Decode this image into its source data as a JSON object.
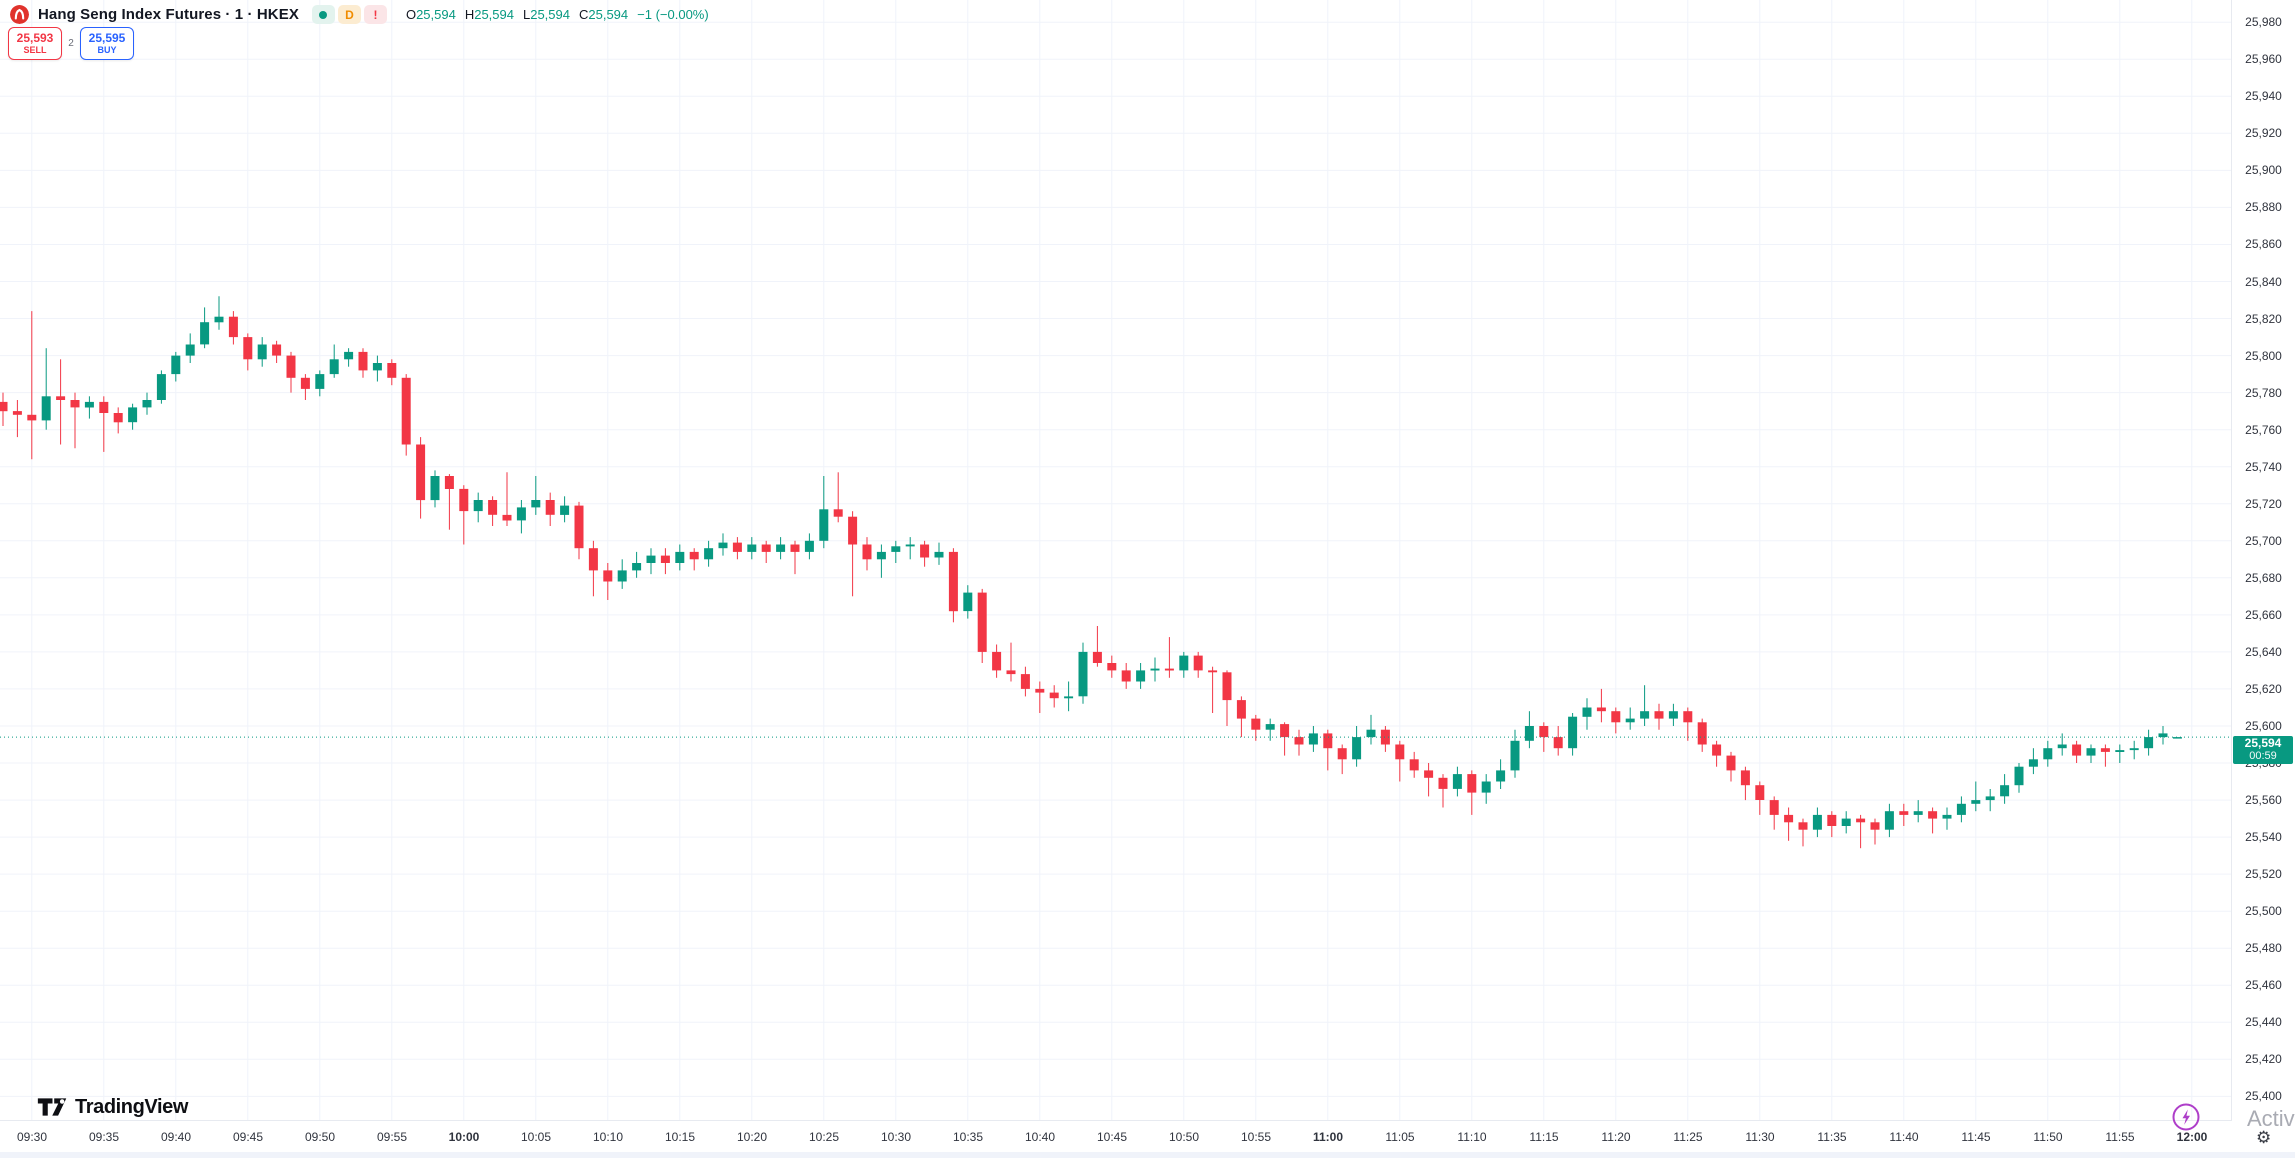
{
  "header": {
    "symbol_title": "Hang Seng Index Futures · 1 · HKEX",
    "badges": {
      "market_status_dot": "●",
      "delayed_label": "D",
      "alert_label": "!"
    },
    "ohlc": {
      "o_label": "O",
      "o": "25,594",
      "h_label": "H",
      "h": "25,594",
      "l_label": "L",
      "l": "25,594",
      "c_label": "C",
      "c": "25,594",
      "change": "−1 (−0.00%)"
    },
    "sell_button": {
      "price": "25,593",
      "label": "SELL"
    },
    "spread": "2",
    "buy_button": {
      "price": "25,595",
      "label": "BUY"
    }
  },
  "watermarks": {
    "brand": "TradingView",
    "overlay_text": "Activ",
    "gear_glyph": "⚙"
  },
  "price_axis": {
    "max": 25980,
    "min": 25400,
    "step": 20,
    "labels": [
      "25,980",
      "25,960",
      "25,940",
      "25,920",
      "25,900",
      "25,880",
      "25,860",
      "25,840",
      "25,820",
      "25,800",
      "25,780",
      "25,760",
      "25,740",
      "25,720",
      "25,700",
      "25,680",
      "25,660",
      "25,640",
      "25,620",
      "25,600",
      "25,580",
      "25,560",
      "25,540",
      "25,520",
      "25,500",
      "25,480",
      "25,460",
      "25,440",
      "25,420",
      "25,400"
    ],
    "current": {
      "price": "25,594",
      "countdown": "00:59"
    }
  },
  "time_axis": {
    "labels": [
      {
        "text": "09:30",
        "bold": false,
        "minute": 2
      },
      {
        "text": "09:35",
        "bold": false,
        "minute": 7
      },
      {
        "text": "09:40",
        "bold": false,
        "minute": 12
      },
      {
        "text": "09:45",
        "bold": false,
        "minute": 17
      },
      {
        "text": "09:50",
        "bold": false,
        "minute": 22
      },
      {
        "text": "09:55",
        "bold": false,
        "minute": 27
      },
      {
        "text": "10:00",
        "bold": true,
        "minute": 32
      },
      {
        "text": "10:05",
        "bold": false,
        "minute": 37
      },
      {
        "text": "10:10",
        "bold": false,
        "minute": 42
      },
      {
        "text": "10:15",
        "bold": false,
        "minute": 47
      },
      {
        "text": "10:20",
        "bold": false,
        "minute": 52
      },
      {
        "text": "10:25",
        "bold": false,
        "minute": 57
      },
      {
        "text": "10:30",
        "bold": false,
        "minute": 62
      },
      {
        "text": "10:35",
        "bold": false,
        "minute": 67
      },
      {
        "text": "10:40",
        "bold": false,
        "minute": 72
      },
      {
        "text": "10:45",
        "bold": false,
        "minute": 77
      },
      {
        "text": "10:50",
        "bold": false,
        "minute": 82
      },
      {
        "text": "10:55",
        "bold": false,
        "minute": 87
      },
      {
        "text": "11:00",
        "bold": true,
        "minute": 92
      },
      {
        "text": "11:05",
        "bold": false,
        "minute": 97
      },
      {
        "text": "11:10",
        "bold": false,
        "minute": 102
      },
      {
        "text": "11:15",
        "bold": false,
        "minute": 107
      },
      {
        "text": "11:20",
        "bold": false,
        "minute": 112
      },
      {
        "text": "11:25",
        "bold": false,
        "minute": 117
      },
      {
        "text": "11:30",
        "bold": false,
        "minute": 122
      },
      {
        "text": "11:35",
        "bold": false,
        "minute": 127
      },
      {
        "text": "11:40",
        "bold": false,
        "minute": 132
      },
      {
        "text": "11:45",
        "bold": false,
        "minute": 137
      },
      {
        "text": "11:50",
        "bold": false,
        "minute": 142
      },
      {
        "text": "11:55",
        "bold": false,
        "minute": 147
      },
      {
        "text": "12:00",
        "bold": true,
        "minute": 152
      }
    ]
  },
  "colors": {
    "up": "#089981",
    "down": "#f23645",
    "sell": "#f23645",
    "buy": "#2962ff",
    "current_line": "#089981",
    "current_label_bg": "#089981",
    "grid": "#f0f3fa",
    "tick": "#b2b5be",
    "logo_red": "#e0332c",
    "status_dot": "#089981",
    "lightning": "#ae3ec9"
  },
  "chart_data": {
    "type": "candlestick",
    "title": "Hang Seng Index Futures, 1 minute, HKEX",
    "interval_minutes": 1,
    "start_time": "09:28",
    "end_time": "11:59",
    "ylim": [
      25400,
      25980
    ],
    "grid": true,
    "current_price": 25594,
    "countdown": "00:59",
    "ohlc_readout": {
      "open": 25594,
      "high": 25594,
      "low": 25594,
      "close": 25594,
      "change": -1,
      "change_pct": "-0.00%"
    },
    "candles": [
      [
        25775,
        25780,
        25762,
        25770
      ],
      [
        25770,
        25776,
        25756,
        25768
      ],
      [
        25768,
        25824,
        25744,
        25765
      ],
      [
        25765,
        25804,
        25760,
        25778
      ],
      [
        25778,
        25798,
        25752,
        25776
      ],
      [
        25776,
        25780,
        25750,
        25772
      ],
      [
        25772,
        25778,
        25766,
        25775
      ],
      [
        25775,
        25778,
        25748,
        25769
      ],
      [
        25769,
        25772,
        25758,
        25764
      ],
      [
        25764,
        25774,
        25760,
        25772
      ],
      [
        25772,
        25780,
        25768,
        25776
      ],
      [
        25776,
        25792,
        25774,
        25790
      ],
      [
        25790,
        25802,
        25786,
        25800
      ],
      [
        25800,
        25812,
        25796,
        25806
      ],
      [
        25806,
        25826,
        25804,
        25818
      ],
      [
        25818,
        25832,
        25814,
        25821
      ],
      [
        25821,
        25824,
        25806,
        25810
      ],
      [
        25810,
        25812,
        25792,
        25798
      ],
      [
        25798,
        25810,
        25794,
        25806
      ],
      [
        25806,
        25808,
        25796,
        25800
      ],
      [
        25800,
        25802,
        25780,
        25788
      ],
      [
        25788,
        25790,
        25776,
        25782
      ],
      [
        25782,
        25792,
        25778,
        25790
      ],
      [
        25790,
        25806,
        25788,
        25798
      ],
      [
        25798,
        25804,
        25794,
        25802
      ],
      [
        25802,
        25804,
        25788,
        25792
      ],
      [
        25792,
        25800,
        25786,
        25796
      ],
      [
        25796,
        25798,
        25784,
        25788
      ],
      [
        25788,
        25790,
        25746,
        25752
      ],
      [
        25752,
        25756,
        25712,
        25722
      ],
      [
        25722,
        25738,
        25718,
        25735
      ],
      [
        25735,
        25736,
        25706,
        25728
      ],
      [
        25728,
        25730,
        25698,
        25716
      ],
      [
        25716,
        25726,
        25710,
        25722
      ],
      [
        25722,
        25724,
        25708,
        25714
      ],
      [
        25714,
        25737,
        25708,
        25711
      ],
      [
        25711,
        25722,
        25704,
        25718
      ],
      [
        25718,
        25735,
        25714,
        25722
      ],
      [
        25722,
        25726,
        25708,
        25714
      ],
      [
        25714,
        25724,
        25710,
        25719
      ],
      [
        25719,
        25721,
        25690,
        25696
      ],
      [
        25696,
        25700,
        25670,
        25684
      ],
      [
        25684,
        25688,
        25668,
        25678
      ],
      [
        25678,
        25690,
        25674,
        25684
      ],
      [
        25684,
        25694,
        25680,
        25688
      ],
      [
        25688,
        25696,
        25682,
        25692
      ],
      [
        25692,
        25696,
        25682,
        25688
      ],
      [
        25688,
        25698,
        25684,
        25694
      ],
      [
        25694,
        25696,
        25684,
        25690
      ],
      [
        25690,
        25700,
        25686,
        25696
      ],
      [
        25696,
        25704,
        25692,
        25699
      ],
      [
        25699,
        25702,
        25690,
        25694
      ],
      [
        25694,
        25702,
        25690,
        25698
      ],
      [
        25698,
        25700,
        25688,
        25694
      ],
      [
        25694,
        25702,
        25690,
        25698
      ],
      [
        25698,
        25700,
        25682,
        25694
      ],
      [
        25694,
        25704,
        25690,
        25700
      ],
      [
        25700,
        25735,
        25696,
        25717
      ],
      [
        25717,
        25737,
        25710,
        25713
      ],
      [
        25713,
        25716,
        25670,
        25698
      ],
      [
        25698,
        25702,
        25684,
        25690
      ],
      [
        25690,
        25698,
        25680,
        25694
      ],
      [
        25694,
        25700,
        25688,
        25697
      ],
      [
        25697,
        25702,
        25690,
        25698
      ],
      [
        25698,
        25700,
        25686,
        25691
      ],
      [
        25691,
        25699,
        25687,
        25694
      ],
      [
        25694,
        25696,
        25656,
        25662
      ],
      [
        25662,
        25676,
        25658,
        25672
      ],
      [
        25672,
        25674,
        25634,
        25640
      ],
      [
        25640,
        25644,
        25626,
        25630
      ],
      [
        25630,
        25645,
        25624,
        25628
      ],
      [
        25628,
        25632,
        25616,
        25620
      ],
      [
        25620,
        25624,
        25607,
        25618
      ],
      [
        25618,
        25622,
        25610,
        25615
      ],
      [
        25615,
        25624,
        25608,
        25616
      ],
      [
        25616,
        25645,
        25612,
        25640
      ],
      [
        25640,
        25654,
        25632,
        25634
      ],
      [
        25634,
        25638,
        25626,
        25630
      ],
      [
        25630,
        25634,
        25620,
        25624
      ],
      [
        25624,
        25634,
        25620,
        25630
      ],
      [
        25630,
        25637,
        25624,
        25631
      ],
      [
        25631,
        25648,
        25626,
        25630
      ],
      [
        25630,
        25640,
        25626,
        25638
      ],
      [
        25638,
        25640,
        25626,
        25630
      ],
      [
        25630,
        25632,
        25607,
        25629
      ],
      [
        25629,
        25630,
        25600,
        25614
      ],
      [
        25614,
        25616,
        25594,
        25604
      ],
      [
        25604,
        25606,
        25592,
        25598
      ],
      [
        25598,
        25604,
        25592,
        25601
      ],
      [
        25601,
        25602,
        25584,
        25594
      ],
      [
        25594,
        25598,
        25584,
        25590
      ],
      [
        25590,
        25600,
        25586,
        25596
      ],
      [
        25596,
        25598,
        25576,
        25588
      ],
      [
        25588,
        25590,
        25574,
        25582
      ],
      [
        25582,
        25600,
        25578,
        25594
      ],
      [
        25594,
        25606,
        25590,
        25598
      ],
      [
        25598,
        25600,
        25586,
        25590
      ],
      [
        25590,
        25592,
        25570,
        25582
      ],
      [
        25582,
        25586,
        25572,
        25576
      ],
      [
        25576,
        25580,
        25562,
        25572
      ],
      [
        25572,
        25574,
        25556,
        25566
      ],
      [
        25566,
        25578,
        25562,
        25574
      ],
      [
        25574,
        25576,
        25552,
        25564
      ],
      [
        25564,
        25574,
        25558,
        25570
      ],
      [
        25570,
        25582,
        25566,
        25576
      ],
      [
        25576,
        25598,
        25572,
        25592
      ],
      [
        25592,
        25608,
        25588,
        25600
      ],
      [
        25600,
        25602,
        25586,
        25594
      ],
      [
        25594,
        25600,
        25584,
        25588
      ],
      [
        25588,
        25607,
        25584,
        25605
      ],
      [
        25605,
        25615,
        25598,
        25610
      ],
      [
        25610,
        25620,
        25602,
        25608
      ],
      [
        25608,
        25610,
        25596,
        25602
      ],
      [
        25602,
        25610,
        25598,
        25604
      ],
      [
        25604,
        25622,
        25600,
        25608
      ],
      [
        25608,
        25612,
        25598,
        25604
      ],
      [
        25604,
        25612,
        25600,
        25608
      ],
      [
        25608,
        25610,
        25592,
        25602
      ],
      [
        25602,
        25604,
        25586,
        25590
      ],
      [
        25590,
        25592,
        25578,
        25584
      ],
      [
        25584,
        25586,
        25570,
        25576
      ],
      [
        25576,
        25578,
        25560,
        25568
      ],
      [
        25568,
        25570,
        25552,
        25560
      ],
      [
        25560,
        25562,
        25544,
        25552
      ],
      [
        25552,
        25556,
        25538,
        25548
      ],
      [
        25548,
        25550,
        25535,
        25544
      ],
      [
        25544,
        25556,
        25540,
        25552
      ],
      [
        25552,
        25554,
        25540,
        25546
      ],
      [
        25546,
        25554,
        25542,
        25550
      ],
      [
        25550,
        25552,
        25534,
        25548
      ],
      [
        25548,
        25550,
        25536,
        25544
      ],
      [
        25544,
        25558,
        25540,
        25554
      ],
      [
        25554,
        25558,
        25546,
        25552
      ],
      [
        25552,
        25560,
        25548,
        25554
      ],
      [
        25554,
        25556,
        25542,
        25550
      ],
      [
        25550,
        25556,
        25544,
        25552
      ],
      [
        25552,
        25562,
        25548,
        25558
      ],
      [
        25558,
        25570,
        25554,
        25560
      ],
      [
        25560,
        25566,
        25554,
        25562
      ],
      [
        25562,
        25574,
        25558,
        25568
      ],
      [
        25568,
        25580,
        25564,
        25578
      ],
      [
        25578,
        25588,
        25574,
        25582
      ],
      [
        25582,
        25592,
        25578,
        25588
      ],
      [
        25588,
        25596,
        25584,
        25590
      ],
      [
        25590,
        25592,
        25580,
        25584
      ],
      [
        25584,
        25590,
        25580,
        25588
      ],
      [
        25588,
        25590,
        25578,
        25586
      ],
      [
        25586,
        25590,
        25580,
        25587
      ],
      [
        25587,
        25592,
        25582,
        25588
      ],
      [
        25588,
        25598,
        25584,
        25594
      ],
      [
        25594,
        25600,
        25590,
        25596
      ],
      [
        25594,
        25594,
        25594,
        25594
      ]
    ]
  }
}
